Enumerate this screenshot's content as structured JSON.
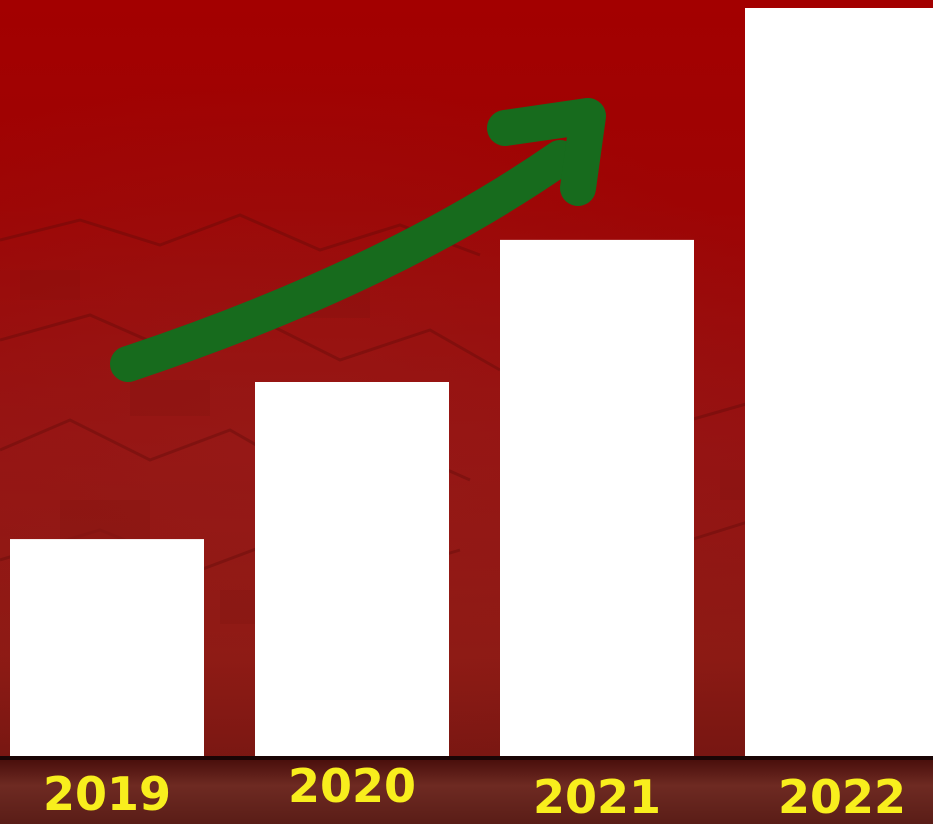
{
  "chart_data": {
    "type": "bar",
    "categories": [
      "2019",
      "2020",
      "2021",
      "2022"
    ],
    "values": [
      29,
      50,
      69,
      100
    ],
    "ylim": [
      0,
      100
    ],
    "title": "",
    "xlabel": "",
    "ylabel": "",
    "grid": false,
    "legend": "none",
    "annotations": [
      {
        "type": "trend-arrow",
        "direction": "upward",
        "color": "#176b1d"
      }
    ]
  },
  "colors": {
    "background": "#9e0404",
    "bar": "#ffffff",
    "tick_label": "#f8ee1d",
    "arrow": "#176b1d"
  }
}
